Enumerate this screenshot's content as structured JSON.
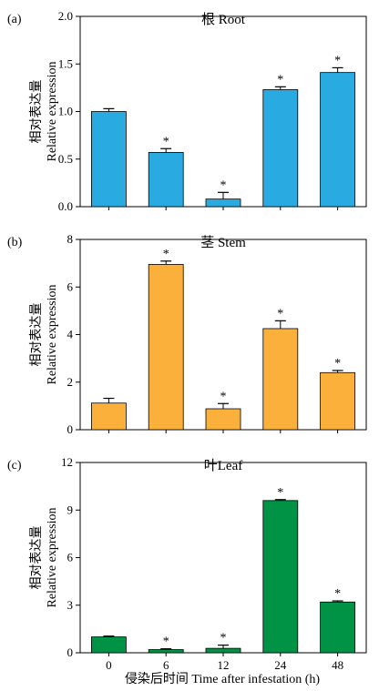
{
  "chart_data": [
    {
      "type": "bar",
      "panel_label": "(a)",
      "title": "根 Root",
      "ylabel_cn": "相对表达量",
      "ylabel": "Relative expression",
      "categories": [
        "0",
        "6",
        "12",
        "24",
        "48"
      ],
      "values": [
        1.0,
        0.57,
        0.08,
        1.23,
        1.41
      ],
      "errors": [
        0.03,
        0.04,
        0.07,
        0.03,
        0.05
      ],
      "significant": [
        false,
        true,
        true,
        true,
        true
      ],
      "ylim": [
        0,
        2.0
      ],
      "yticks": [
        "0.0",
        "0.5",
        "1.0",
        "1.5",
        "2.0"
      ],
      "bar_color": "#29ABE2"
    },
    {
      "type": "bar",
      "panel_label": "(b)",
      "title": "茎 Stem",
      "ylabel_cn": "相对表达量",
      "ylabel": "Relative expression",
      "categories": [
        "0",
        "6",
        "12",
        "24",
        "48"
      ],
      "values": [
        1.12,
        6.95,
        0.88,
        4.25,
        2.4
      ],
      "errors": [
        0.2,
        0.14,
        0.22,
        0.33,
        0.09
      ],
      "significant": [
        false,
        true,
        true,
        true,
        true
      ],
      "ylim": [
        0,
        8
      ],
      "yticks": [
        "0",
        "2",
        "4",
        "6",
        "8"
      ],
      "bar_color": "#FBB03B"
    },
    {
      "type": "bar",
      "panel_label": "(c)",
      "title": "叶Leaf",
      "ylabel_cn": "相对表达量",
      "ylabel": "Relative expression",
      "categories": [
        "0",
        "6",
        "12",
        "24",
        "48"
      ],
      "values": [
        1.0,
        0.2,
        0.28,
        9.6,
        3.2
      ],
      "errors": [
        0.05,
        0.05,
        0.2,
        0.06,
        0.07
      ],
      "significant": [
        false,
        true,
        true,
        true,
        true
      ],
      "ylim": [
        0,
        12
      ],
      "yticks": [
        "0",
        "3",
        "6",
        "9",
        "12"
      ],
      "bar_color": "#009245"
    }
  ],
  "xlabel": "侵染后时间 Time after infestation (h)",
  "significance_marker": "*"
}
